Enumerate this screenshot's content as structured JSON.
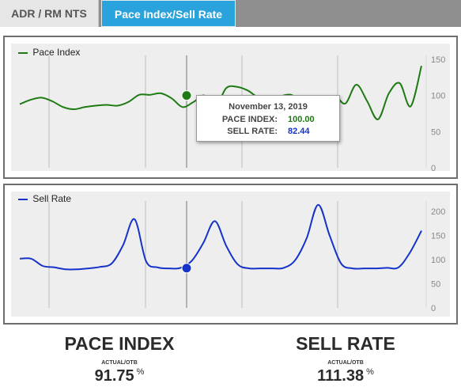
{
  "tabs": [
    {
      "label": "ADR / RM NTS",
      "active": false
    },
    {
      "label": "Pace Index/Sell Rate",
      "active": true
    }
  ],
  "pace_chart": {
    "legend": "Pace Index",
    "y_ticks": [
      "150",
      "100",
      "50",
      "0"
    ],
    "color": "#1e7a12"
  },
  "sell_chart": {
    "legend": "Sell Rate",
    "y_ticks": [
      "200",
      "150",
      "100",
      "50",
      "0"
    ],
    "color": "#1533c9"
  },
  "tooltip": {
    "date": "November 13, 2019",
    "pace_label": "PACE INDEX:",
    "pace_value": "100.00",
    "sell_label": "SELL RATE:",
    "sell_value": "82.44"
  },
  "summary": {
    "pace": {
      "title": "PACE INDEX",
      "sub": "ACTUAL/OTB",
      "value": "91.75",
      "unit": "%"
    },
    "sell": {
      "title": "SELL RATE",
      "sub": "ACTUAL/OTB",
      "value": "111.38",
      "unit": "%"
    }
  },
  "chart_data": [
    {
      "type": "line",
      "title": "",
      "series": [
        {
          "name": "Pace Index",
          "values": [
            88,
            94,
            97,
            92,
            84,
            81,
            84,
            86,
            87,
            86,
            91,
            101,
            101,
            103,
            96,
            84,
            91,
            100,
            83,
            110,
            112,
            107,
            97,
            96,
            99,
            101,
            90,
            72,
            68,
            97,
            89,
            115,
            92,
            67,
            103,
            117,
            85,
            141
          ]
        }
      ],
      "ylim": [
        0,
        150
      ],
      "highlight": {
        "x": "November 13, 2019",
        "y": 100.0
      }
    },
    {
      "type": "line",
      "title": "",
      "series": [
        {
          "name": "Sell Rate",
          "values": [
            102,
            102,
            87,
            84,
            80,
            80,
            82,
            85,
            92,
            130,
            184,
            97,
            84,
            82,
            83,
            98,
            135,
            180,
            128,
            90,
            82,
            82,
            82,
            83,
            99,
            145,
            214,
            150,
            92,
            82,
            82,
            82,
            83,
            84,
            115,
            160
          ]
        }
      ],
      "ylim": [
        0,
        220
      ],
      "highlight": {
        "x": "November 13, 2019",
        "y": 82.44
      }
    }
  ]
}
